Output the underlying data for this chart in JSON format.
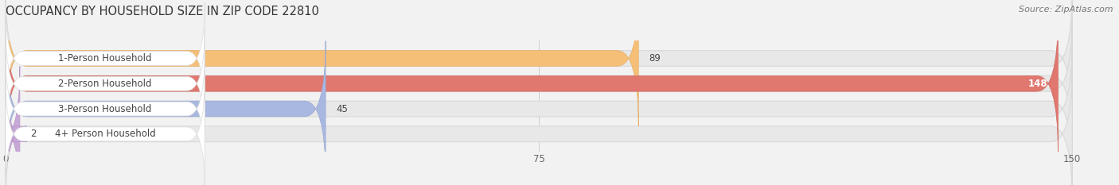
{
  "title": "OCCUPANCY BY HOUSEHOLD SIZE IN ZIP CODE 22810",
  "source": "Source: ZipAtlas.com",
  "categories": [
    "1-Person Household",
    "2-Person Household",
    "3-Person Household",
    "4+ Person Household"
  ],
  "values": [
    89,
    148,
    45,
    2
  ],
  "bar_colors": [
    "#f5bf78",
    "#e07870",
    "#a8b8e0",
    "#c8a8d8"
  ],
  "bar_edge_colors": [
    "#e5af68",
    "#d06860",
    "#98a8d0",
    "#b898c8"
  ],
  "xlim": [
    0,
    150
  ],
  "xticks": [
    0,
    75,
    150
  ],
  "bg_color": "#f2f2f2",
  "bar_bg_color": "#e8e8e8",
  "bar_bg_edge_color": "#d8d8d8",
  "white_label_bg": "#ffffff",
  "title_fontsize": 10.5,
  "source_fontsize": 8,
  "label_fontsize": 8.5,
  "value_fontsize": 8.5,
  "tick_fontsize": 8.5,
  "bar_height": 0.62,
  "figsize": [
    14.06,
    2.33
  ]
}
